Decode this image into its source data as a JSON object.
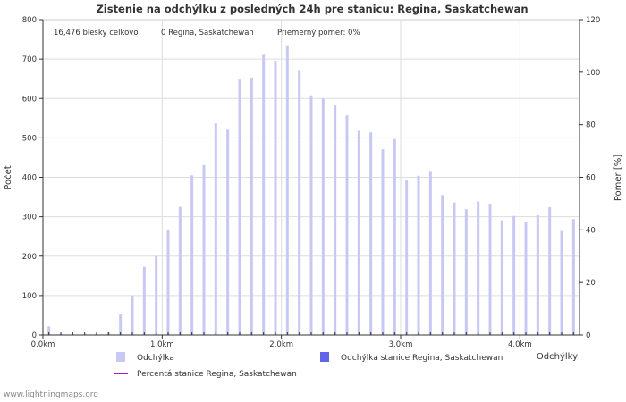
{
  "chart_data": {
    "type": "bar",
    "title": "Zistenie na odchýlku z posledných 24h pre stanicu: Regina, Saskatchewan",
    "info": {
      "total": "16,476 blesky celkovo",
      "station": "0 Regina, Saskatchewan",
      "avg": "Priemerný pomer: 0%"
    },
    "xlabel": "Odchýlky",
    "ylabel_left": "Počet",
    "ylabel_right": "Pomer [%]",
    "xlim": [
      0,
      4.5
    ],
    "ylim_left": [
      0,
      800
    ],
    "ylim_right": [
      0,
      120
    ],
    "yticks_left": [
      0,
      100,
      200,
      300,
      400,
      500,
      600,
      700,
      800
    ],
    "yticks_right": [
      0,
      20,
      40,
      60,
      80,
      100,
      120
    ],
    "xticks": [
      {
        "value": 0,
        "label": "0.0km"
      },
      {
        "value": 1,
        "label": "1.0km"
      },
      {
        "value": 2,
        "label": "2.0km"
      },
      {
        "value": 3,
        "label": "3.0km"
      },
      {
        "value": 4,
        "label": "4.0km"
      }
    ],
    "bin_width_km": 0.1,
    "series": [
      {
        "name": "Odchýlka",
        "color": "#c8c8f4",
        "x": [
          0.0,
          0.1,
          0.2,
          0.3,
          0.4,
          0.5,
          0.6,
          0.7,
          0.8,
          0.9,
          1.0,
          1.1,
          1.2,
          1.3,
          1.4,
          1.5,
          1.6,
          1.7,
          1.8,
          1.9,
          2.0,
          2.1,
          2.2,
          2.3,
          2.4,
          2.5,
          2.6,
          2.7,
          2.8,
          2.9,
          3.0,
          3.1,
          3.2,
          3.3,
          3.4,
          3.5,
          3.6,
          3.7,
          3.8,
          3.9,
          4.0,
          4.1,
          4.2,
          4.3,
          4.4
        ],
        "values": [
          22,
          3,
          2,
          2,
          3,
          6,
          52,
          100,
          173,
          200,
          267,
          325,
          405,
          431,
          537,
          523,
          650,
          653,
          711,
          696,
          735,
          672,
          608,
          600,
          582,
          557,
          518,
          514,
          471,
          497,
          392,
          404,
          416,
          355,
          336,
          319,
          339,
          333,
          291,
          302,
          286,
          304,
          324,
          264,
          294
        ]
      },
      {
        "name": "Odchýlka stanice Regina, Saskatchewan",
        "color": "#6464e8",
        "values": [
          0,
          0,
          0,
          0,
          0,
          0,
          0,
          0,
          0,
          0,
          0,
          0,
          0,
          0,
          0,
          0,
          0,
          0,
          0,
          0,
          0,
          0,
          0,
          0,
          0,
          0,
          0,
          0,
          0,
          0,
          0,
          0,
          0,
          0,
          0,
          0,
          0,
          0,
          0,
          0,
          0,
          0,
          0,
          0,
          0
        ]
      },
      {
        "name": "Percentá stanice Regina, Saskatchewan",
        "color": "#a020c0",
        "type": "line",
        "values": []
      }
    ],
    "grid": true,
    "legend_position": "bottom"
  },
  "footer": "www.lightningmaps.org"
}
